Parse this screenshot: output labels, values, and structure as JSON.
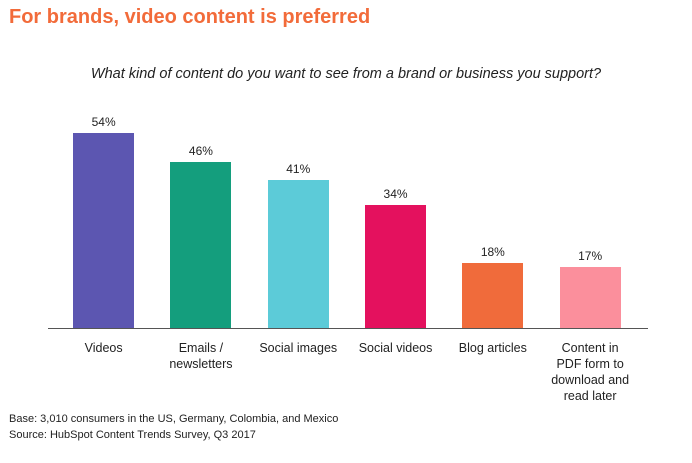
{
  "chart_data": {
    "type": "bar",
    "title": "For brands, video content is preferred",
    "subtitle": "What kind of content do you want to see from a brand or business you support?",
    "categories": [
      "Videos",
      "Emails / newsletters",
      "Social images",
      "Social videos",
      "Blog articles",
      "Content in PDF form to download and read later"
    ],
    "values": [
      54,
      46,
      41,
      34,
      18,
      17
    ],
    "value_labels": [
      "54%",
      "46%",
      "41%",
      "34%",
      "18%",
      "17%"
    ],
    "colors": [
      "#5c56b1",
      "#149e7d",
      "#5ccbd8",
      "#e4115e",
      "#f06b3b",
      "#fb8f9c"
    ],
    "notes": [
      "Base: 3,010 consumers in the US, Germany, Colombia, and Mexico",
      "Source: HubSpot Content Trends Survey, Q3 2017"
    ]
  }
}
